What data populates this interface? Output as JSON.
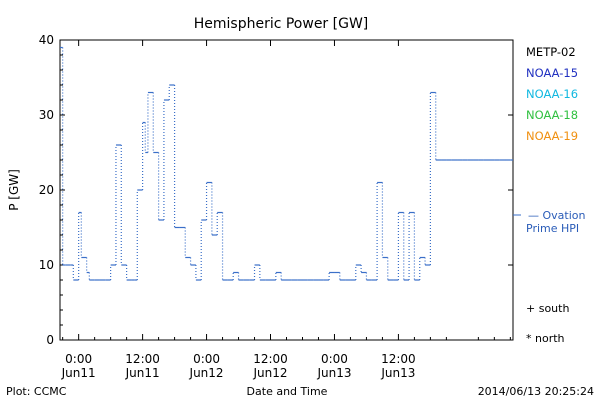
{
  "chart_data": {
    "type": "line",
    "title": "Hemispheric Power [GW]",
    "xlabel": "Date and Time",
    "ylabel": "P [GW]",
    "ylim": [
      0,
      40
    ],
    "xlim": [
      -3.5,
      81.5
    ],
    "x_unit": "hours since 2014/06/11 00:00",
    "yticks": [
      0,
      10,
      20,
      30,
      40
    ],
    "xticks": [
      {
        "x": 0,
        "time": "0:00",
        "date": "Jun11"
      },
      {
        "x": 12,
        "time": "12:00",
        "date": "Jun11"
      },
      {
        "x": 24,
        "time": "0:00",
        "date": "Jun12"
      },
      {
        "x": 36,
        "time": "12:00",
        "date": "Jun12"
      },
      {
        "x": 48,
        "time": "0:00",
        "date": "Jun13"
      },
      {
        "x": 60,
        "time": "12:00",
        "date": "Jun13"
      }
    ],
    "grid": false,
    "legend_position": "right",
    "legend": [
      {
        "name": "METP-02",
        "color": "#000000"
      },
      {
        "name": "NOAA-15",
        "color": "#2030c0"
      },
      {
        "name": "NOAA-16",
        "color": "#10b8e0"
      },
      {
        "name": "NOAA-18",
        "color": "#30c040"
      },
      {
        "name": "NOAA-19",
        "color": "#f09010"
      }
    ],
    "series": [
      {
        "name": "Ovation Prime HPI",
        "color": "#3a6fc8",
        "style": "step",
        "x": [
          -3.5,
          -3,
          -2.5,
          -1.5,
          -1,
          0,
          0.5,
          1,
          1.5,
          2,
          3,
          4,
          5,
          6,
          7,
          8,
          9,
          10,
          10.5,
          11,
          12,
          12.5,
          13,
          14,
          15,
          16,
          17,
          18,
          19,
          20,
          21,
          22,
          23,
          24,
          25,
          26,
          27,
          28,
          29,
          30,
          31,
          32,
          33,
          34,
          35,
          36,
          37,
          38,
          39,
          40,
          41,
          42,
          43,
          44,
          45,
          46,
          47,
          48,
          49,
          50,
          51,
          52,
          53,
          54,
          55,
          56,
          57,
          58,
          59,
          60,
          61,
          62,
          63,
          64,
          65,
          66,
          67,
          68,
          69,
          70,
          71,
          72,
          73,
          74,
          75,
          76,
          77,
          78,
          79,
          80,
          81
        ],
        "y": [
          39,
          10,
          10,
          10,
          8,
          17,
          11,
          11,
          9,
          8,
          8,
          8,
          8,
          10,
          26,
          10,
          8,
          8,
          8,
          20,
          29,
          25,
          33,
          25,
          16,
          32,
          34,
          15,
          15,
          11,
          10,
          8,
          16,
          21,
          14,
          17,
          8,
          8,
          9,
          8,
          8,
          8,
          10,
          8,
          8,
          8,
          9,
          8,
          8,
          8,
          8,
          8,
          8,
          8,
          8,
          8,
          9,
          9,
          8,
          8,
          8,
          10,
          9,
          8,
          8,
          21,
          11,
          8,
          8,
          17,
          8,
          17,
          8,
          11,
          10,
          33,
          24,
          24,
          24,
          24,
          24,
          24,
          24,
          24,
          24,
          24,
          24,
          24,
          24,
          24,
          24
        ]
      }
    ],
    "annotations": [
      "+ south",
      "* north"
    ]
  },
  "footer": {
    "left": "Plot: CCMC",
    "right": "2014/06/13 20:25:24"
  },
  "right_label": {
    "line1": "— Ovation",
    "line2": "Prime HPI"
  }
}
